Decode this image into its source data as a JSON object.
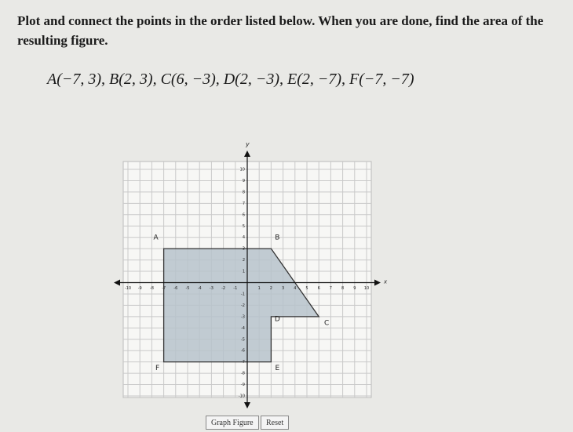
{
  "instructions": "Plot and connect the points in the order listed below. When you are done, find the area of the resulting figure.",
  "points_text": "A(−7, 3), B(2, 3), C(6, −3), D(2, −3), E(2, −7), F(−7, −7)",
  "graph": {
    "x_axis_label": "x",
    "y_axis_label": "y",
    "xlim": [
      -10,
      10
    ],
    "ylim": [
      -10,
      10
    ],
    "xticks": [
      -10,
      -9,
      -8,
      -7,
      -6,
      -5,
      -4,
      -3,
      -2,
      -1,
      1,
      2,
      3,
      4,
      5,
      6,
      7,
      8,
      9,
      10
    ],
    "yticks": [
      -10,
      -9,
      -8,
      -7,
      -6,
      -5,
      -4,
      -3,
      -2,
      -1,
      1,
      2,
      3,
      4,
      5,
      6,
      7,
      8,
      9,
      10
    ],
    "vertices": [
      {
        "label": "A",
        "x": -7,
        "y": 3
      },
      {
        "label": "B",
        "x": 2,
        "y": 3
      },
      {
        "label": "C",
        "x": 6,
        "y": -3
      },
      {
        "label": "D",
        "x": 2,
        "y": -3
      },
      {
        "label": "E",
        "x": 2,
        "y": -7
      },
      {
        "label": "F",
        "x": -7,
        "y": -7
      }
    ]
  },
  "buttons": [
    "Graph Figure",
    "Reset"
  ]
}
